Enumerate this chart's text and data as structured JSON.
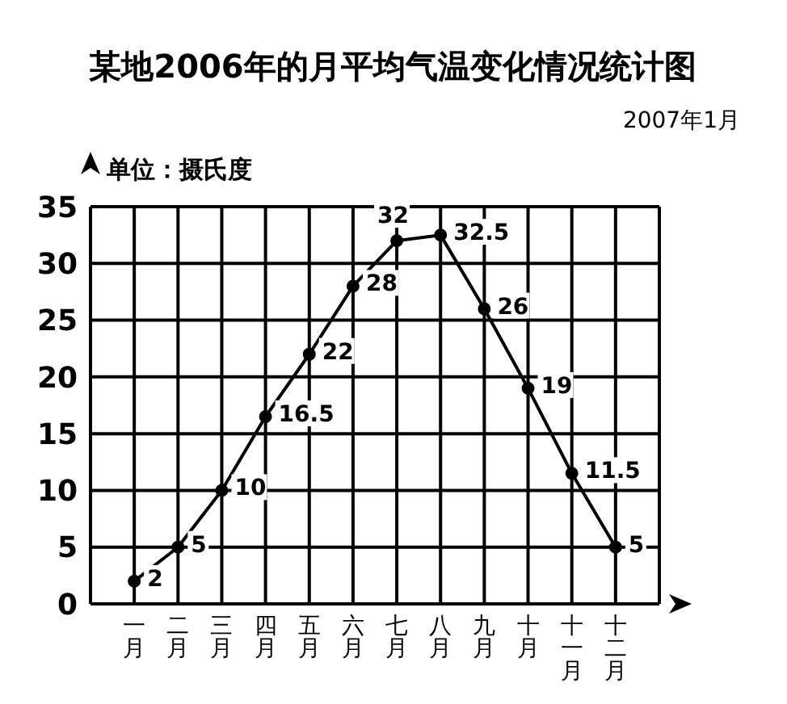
{
  "chart_data": {
    "type": "line",
    "title": "某地2006年的月平均气温变化情况统计图",
    "subtitle": "2007年1月",
    "ylabel": "单位：摄氏度",
    "categories": [
      "一月",
      "二月",
      "三月",
      "四月",
      "五月",
      "六月",
      "七月",
      "八月",
      "九月",
      "十月",
      "十一月",
      "十二月"
    ],
    "series": [
      {
        "color": "#000000",
        "values": [
          2,
          5,
          10,
          16.5,
          22,
          28,
          32,
          32.5,
          26,
          19,
          11.5,
          5
        ]
      }
    ],
    "ylim": [
      0,
      35
    ],
    "yticks": [
      0,
      5,
      10,
      15,
      20,
      25,
      30,
      35
    ],
    "grid": true,
    "data_labels": true,
    "marker": "circle",
    "line_style": "solid"
  }
}
